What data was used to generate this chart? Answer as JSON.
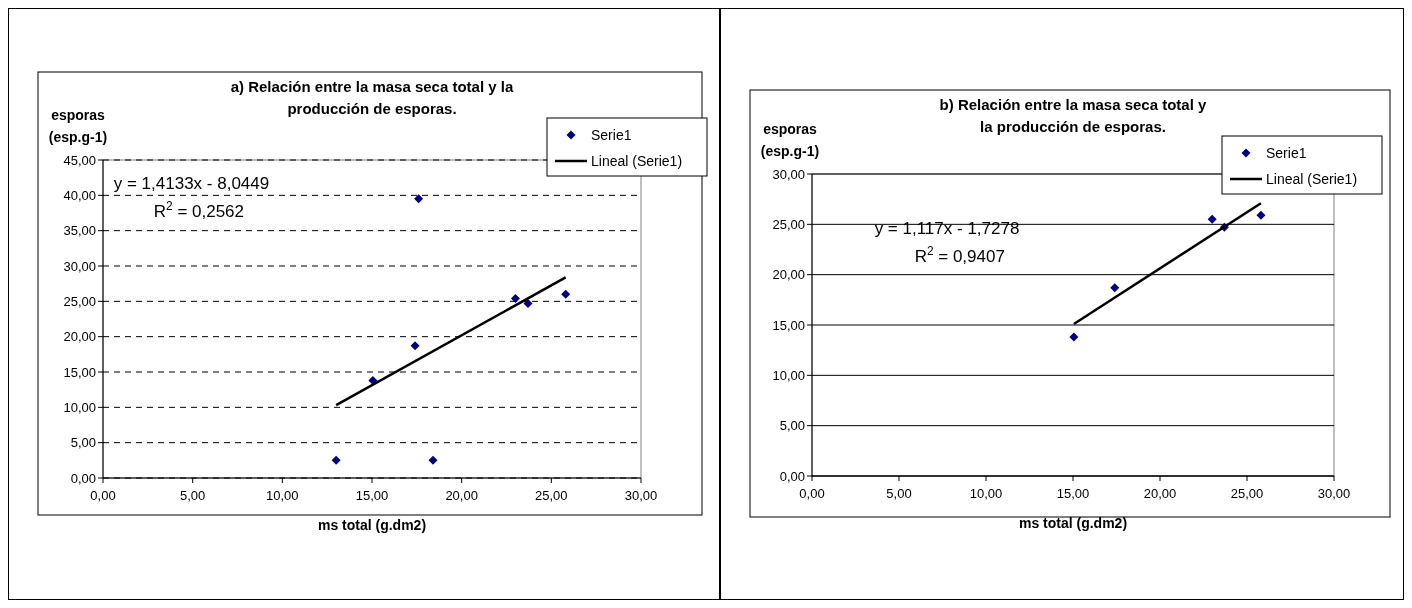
{
  "chart_data": [
    {
      "type": "scatter",
      "title": "a)  Relación entre la masa seca total y la producción de esporas.",
      "xlabel": "ms total (g.dm2)",
      "ylabel": "esporas (esp.g-1)",
      "annotations": [
        "y = 1,4133x - 8,0449",
        "R$^{2}$ = 0,2562"
      ],
      "xlim": [
        0,
        30
      ],
      "xticks": [
        {
          "value": 0,
          "label": "0,00"
        },
        {
          "value": 5,
          "label": "5,00"
        },
        {
          "value": 10,
          "label": "10,00"
        },
        {
          "value": 15,
          "label": "15,00"
        },
        {
          "value": 20,
          "label": "20,00"
        },
        {
          "value": 25,
          "label": "25,00"
        },
        {
          "value": 30,
          "label": "30,00"
        }
      ],
      "ylim": [
        0,
        45
      ],
      "yticks": [
        {
          "value": 0,
          "label": "0,00"
        },
        {
          "value": 5,
          "label": "5,00"
        },
        {
          "value": 10,
          "label": "10,00"
        },
        {
          "value": 15,
          "label": "15,00"
        },
        {
          "value": 20,
          "label": "20,00"
        },
        {
          "value": 25,
          "label": "25,00"
        },
        {
          "value": 30,
          "label": "30,00"
        },
        {
          "value": 35,
          "label": "35,00"
        },
        {
          "value": 40,
          "label": "40,00"
        },
        {
          "value": 45,
          "label": "45,00"
        }
      ],
      "grid": "y",
      "legend": "top right",
      "series": [
        {
          "name": "Serie1",
          "color": "#000080",
          "marker": "diamond",
          "x": [
            13.0,
            15.05,
            17.4,
            17.6,
            18.4,
            23.0,
            23.7,
            25.8
          ],
          "values": [
            2.5,
            13.8,
            18.7,
            39.5,
            2.5,
            25.4,
            24.7,
            26.0
          ]
        },
        {
          "name": "Lineal (Serie1)",
          "type": "line",
          "color": "#000000",
          "x": [
            13.0,
            25.8
          ],
          "values": [
            10.3,
            28.4
          ]
        }
      ]
    },
    {
      "type": "scatter",
      "title": "b)  Relación entre la masa seca total y la producción de esporas.",
      "xlabel": "ms total (g.dm2)",
      "ylabel": "esporas (esp.g-1)",
      "annotations": [
        "y = 1,117x - 1,7278",
        "R$^{2}$ = 0,9407"
      ],
      "xlim": [
        0,
        30
      ],
      "xticks": [
        {
          "value": 0,
          "label": "0,00"
        },
        {
          "value": 5,
          "label": "5,00"
        },
        {
          "value": 10,
          "label": "10,00"
        },
        {
          "value": 15,
          "label": "15,00"
        },
        {
          "value": 20,
          "label": "20,00"
        },
        {
          "value": 25,
          "label": "25,00"
        },
        {
          "value": 30,
          "label": "30,00"
        }
      ],
      "ylim": [
        0,
        30
      ],
      "yticks": [
        {
          "value": 0,
          "label": "0,00"
        },
        {
          "value": 5,
          "label": "5,00"
        },
        {
          "value": 10,
          "label": "10,00"
        },
        {
          "value": 15,
          "label": "15,00"
        },
        {
          "value": 20,
          "label": "20,00"
        },
        {
          "value": 25,
          "label": "25,00"
        },
        {
          "value": 30,
          "label": "30,00"
        }
      ],
      "grid": "y",
      "legend": "top right",
      "series": [
        {
          "name": "Serie1",
          "color": "#000080",
          "marker": "diamond",
          "x": [
            15.05,
            17.4,
            23.0,
            23.7,
            25.8
          ],
          "values": [
            13.8,
            18.7,
            25.5,
            24.7,
            25.9
          ]
        },
        {
          "name": "Lineal (Serie1)",
          "type": "line",
          "color": "#000000",
          "x": [
            15.05,
            25.8
          ],
          "values": [
            15.1,
            27.1
          ]
        }
      ]
    }
  ]
}
